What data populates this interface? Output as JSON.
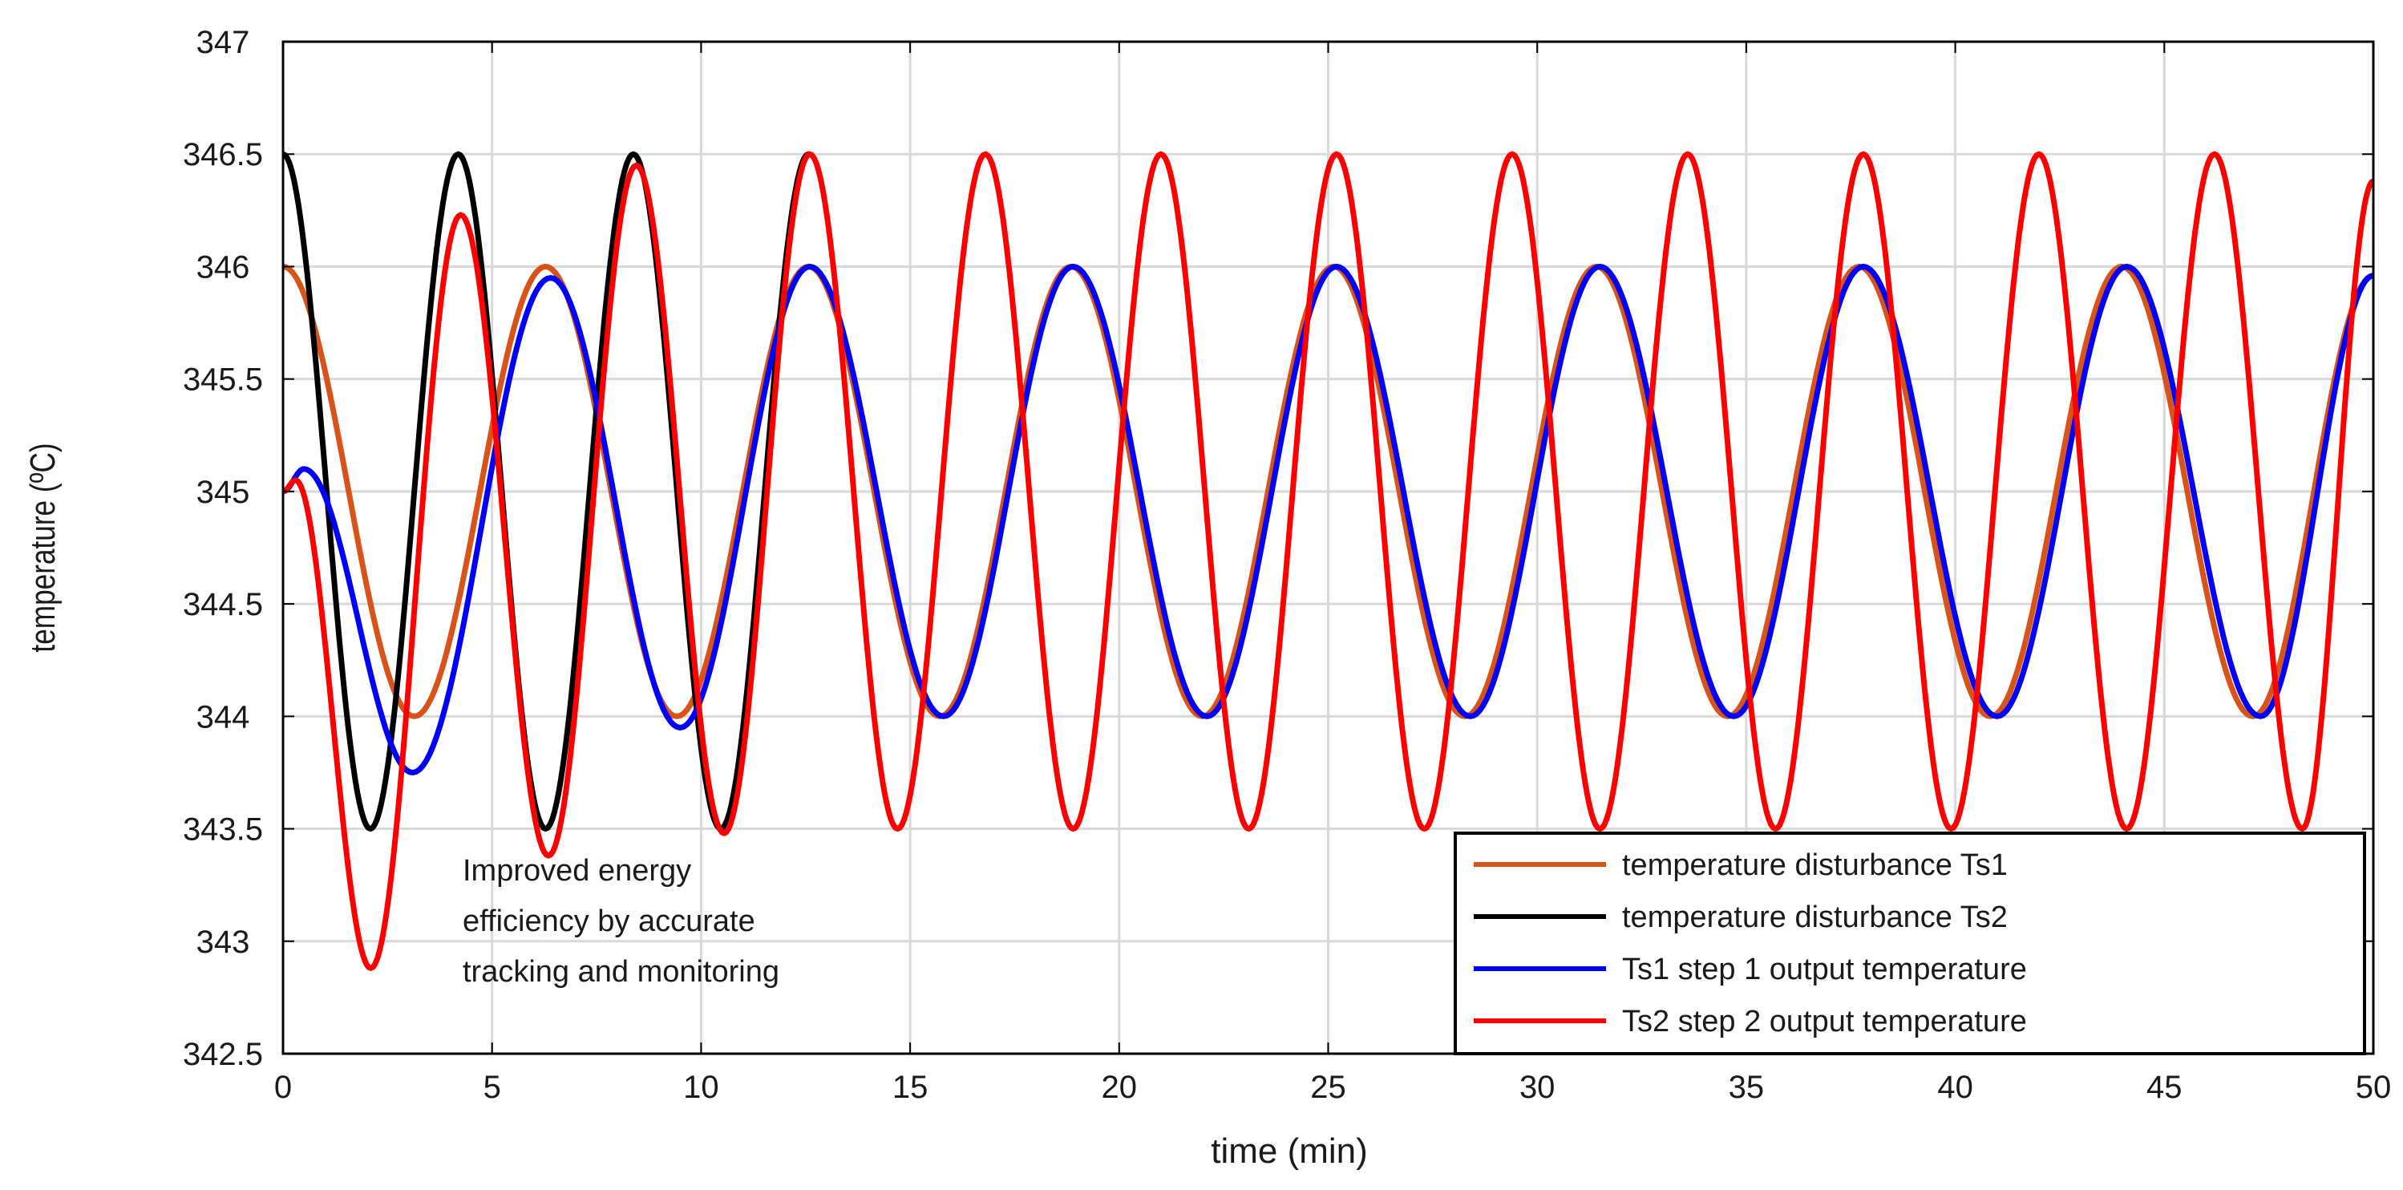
{
  "chart_data": {
    "type": "line",
    "title": "",
    "xlabel": "time (min)",
    "ylabel": "temperature (ºC)",
    "xlim": [
      0,
      50
    ],
    "ylim": [
      342.5,
      347
    ],
    "xticks": [
      0,
      5,
      10,
      15,
      20,
      25,
      30,
      35,
      40,
      45,
      50
    ],
    "yticks": [
      342.5,
      343,
      343.5,
      344,
      344.5,
      345,
      345.5,
      346,
      346.5,
      347
    ],
    "xtick_labels": [
      "0",
      "5",
      "10",
      "15",
      "20",
      "25",
      "30",
      "35",
      "40",
      "45",
      "50"
    ],
    "ytick_labels": [
      "342.5",
      "343",
      "343.5",
      "344",
      "344.5",
      "345",
      "345.5",
      "346",
      "346.5",
      "347"
    ],
    "grid": true,
    "legend_position": "bottom-right",
    "annotation": [
      "Improved  energy",
      "efficiency by accurate",
      "tracking and monitoring"
    ],
    "series": [
      {
        "name": "temperature disturbance Ts1",
        "color": "#D95319",
        "x": [
          0,
          3.14,
          6.28,
          9.42,
          12.57,
          15.71,
          18.85,
          21.99,
          25.13,
          28.27,
          31.42,
          34.56,
          37.7,
          40.84,
          43.98,
          47.12,
          50
        ],
        "y": [
          346,
          344,
          346,
          344,
          346,
          344,
          346,
          344,
          346,
          344,
          346,
          344,
          346,
          344,
          346,
          344,
          345.96
        ]
      },
      {
        "name": "temperature disturbance Ts2",
        "color": "#000000",
        "x": [
          0,
          2.09,
          4.19,
          6.28,
          8.38,
          10.47,
          12.57
        ],
        "y": [
          346.5,
          343.5,
          346.5,
          343.5,
          346.5,
          343.5,
          346.5
        ]
      },
      {
        "name": "Ts1 step 1 output temperature",
        "color": "#0000FF",
        "x": [
          0,
          0.5,
          3.1,
          6.4,
          9.5,
          12.6,
          15.8,
          18.9,
          22.1,
          25.2,
          28.4,
          31.5,
          34.7,
          37.8,
          41.0,
          44.1,
          47.3,
          50
        ],
        "y": [
          345,
          345.1,
          343.75,
          345.95,
          343.95,
          346,
          344,
          346,
          344,
          346,
          344,
          346,
          344,
          346,
          344,
          346,
          344,
          345.96
        ]
      },
      {
        "name": "Ts2 step 2 output temperature",
        "color": "#FF0000",
        "x": [
          0,
          0.3,
          2.1,
          4.25,
          6.35,
          8.45,
          10.55,
          12.6,
          14.7,
          16.8,
          18.9,
          21.0,
          23.1,
          25.2,
          27.3,
          29.4,
          31.5,
          33.6,
          35.7,
          37.8,
          39.9,
          42.0,
          44.1,
          46.2,
          48.3,
          50
        ],
        "y": [
          345,
          345.05,
          342.88,
          346.23,
          343.38,
          346.45,
          343.48,
          346.5,
          343.5,
          346.5,
          343.5,
          346.5,
          343.5,
          346.5,
          343.5,
          346.5,
          343.5,
          346.5,
          343.5,
          346.5,
          343.5,
          346.5,
          343.5,
          346.5,
          343.5,
          346.38
        ]
      }
    ]
  }
}
